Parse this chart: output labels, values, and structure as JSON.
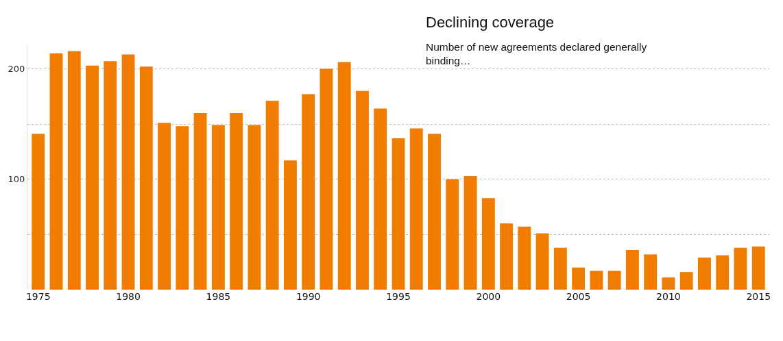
{
  "chart_data": {
    "type": "bar",
    "title": "Declining coverage",
    "subtitle": "Number of new agreements declared generally binding…",
    "x": [
      1975,
      1976,
      1977,
      1978,
      1979,
      1980,
      1981,
      1982,
      1983,
      1984,
      1985,
      1986,
      1987,
      1988,
      1989,
      1990,
      1991,
      1992,
      1993,
      1994,
      1995,
      1996,
      1997,
      1998,
      1999,
      2000,
      2001,
      2002,
      2003,
      2004,
      2005,
      2006,
      2007,
      2008,
      2009,
      2010,
      2011,
      2012,
      2013,
      2014,
      2015
    ],
    "values": [
      141,
      214,
      216,
      203,
      207,
      213,
      202,
      151,
      148,
      160,
      149,
      160,
      149,
      171,
      117,
      177,
      200,
      206,
      180,
      164,
      137,
      146,
      141,
      100,
      103,
      83,
      60,
      57,
      51,
      38,
      20,
      17,
      17,
      36,
      32,
      11,
      16,
      29,
      31,
      38,
      39
    ],
    "color": "#f07d00",
    "xlim": [
      1974.4,
      2015.6
    ],
    "xticks": [
      1975,
      1980,
      1985,
      1990,
      1995,
      2000,
      2005,
      2010,
      2015
    ],
    "ylim": [
      0,
      222
    ],
    "yticks": [
      {
        "value": 50,
        "label": null
      },
      100,
      {
        "value": 150,
        "label": null
      },
      200
    ],
    "grid": "y"
  }
}
